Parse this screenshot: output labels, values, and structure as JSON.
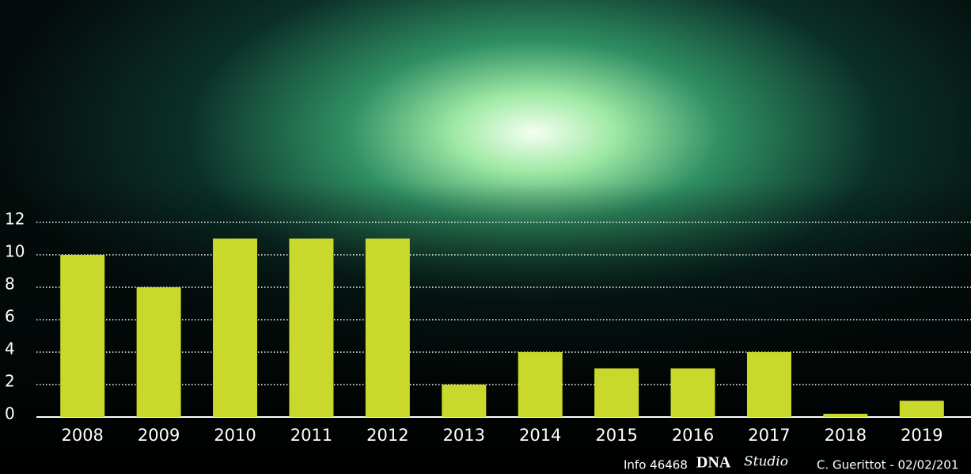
{
  "chart_data": {
    "type": "bar",
    "categories": [
      "2008",
      "2009",
      "2010",
      "2011",
      "2012",
      "2013",
      "2014",
      "2015",
      "2016",
      "2017",
      "2018",
      "2019"
    ],
    "values": [
      10,
      8,
      11,
      11,
      11,
      2,
      4,
      3,
      3,
      4,
      0.2,
      1
    ],
    "color": "#c9d92b",
    "ylim": [
      0,
      12
    ],
    "yticks": [
      0,
      2,
      4,
      6,
      8,
      10,
      12
    ],
    "grid": true,
    "footer": {
      "info": "Info 46468",
      "brand": "DNA",
      "studio": "Studio",
      "credit": "C. Guerittot - 02/02/201"
    }
  }
}
